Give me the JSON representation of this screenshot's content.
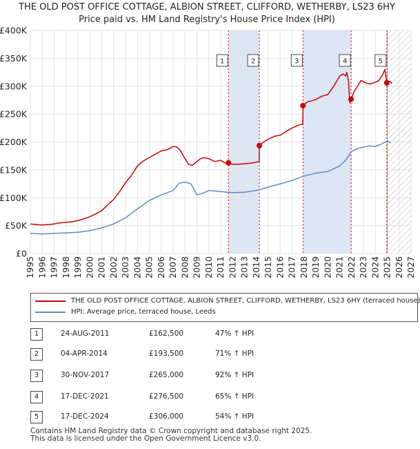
{
  "title_line1": "THE OLD POST OFFICE COTTAGE, ALBION STREET, CLIFFORD, WETHERBY, LS23 6HY",
  "title_line2": "Price paid vs. HM Land Registry's House Price Index (HPI)",
  "chart_data": {
    "type": "line",
    "ylim": [
      0,
      400000
    ],
    "xlim": [
      1995,
      2027
    ],
    "y_ticks": [
      0,
      50000,
      100000,
      150000,
      200000,
      250000,
      300000,
      350000,
      400000
    ],
    "y_tick_labels": [
      "£0",
      "£50K",
      "£100K",
      "£150K",
      "£200K",
      "£250K",
      "£300K",
      "£350K",
      "£400K"
    ],
    "x_ticks": [
      1995,
      1996,
      1997,
      1998,
      1999,
      2000,
      2001,
      2002,
      2003,
      2004,
      2005,
      2006,
      2007,
      2008,
      2009,
      2010,
      2011,
      2012,
      2013,
      2014,
      2015,
      2016,
      2017,
      2018,
      2019,
      2020,
      2021,
      2022,
      2023,
      2024,
      2025,
      2026,
      2027
    ],
    "grid": true,
    "legend_position": "below",
    "colors": {
      "property": "#cc0000",
      "hpi": "#5b8ac6",
      "shade": "#dde6f5",
      "marker_line": "#cc0000"
    },
    "shaded_spans": [
      [
        2011.65,
        2014.25
      ],
      [
        2017.92,
        2021.96
      ]
    ],
    "hatch_from": 2025.0,
    "series": [
      {
        "name": "THE OLD POST OFFICE COTTAGE, ALBION STREET, CLIFFORD, WETHERBY, LS23 6HY (terraced house)",
        "color": "#cc0000",
        "x": [
          1995,
          1995.5,
          1996,
          1996.5,
          1997,
          1997.5,
          1998,
          1998.5,
          1999,
          1999.5,
          2000,
          2000.5,
          2001,
          2001.5,
          2002,
          2002.5,
          2003,
          2003.5,
          2004,
          2004.5,
          2005,
          2005.5,
          2006,
          2006.5,
          2007,
          2007.3,
          2007.6,
          2008,
          2008.3,
          2008.6,
          2009,
          2009.3,
          2009.6,
          2010,
          2010.5,
          2011,
          2011.3,
          2011.65,
          2012,
          2012.5,
          2013,
          2013.5,
          2014,
          2014.24,
          2014.25,
          2014.6,
          2015,
          2015.5,
          2016,
          2016.5,
          2017,
          2017.5,
          2017.9,
          2017.92,
          2018.3,
          2018.7,
          2019,
          2019.5,
          2020,
          2020.5,
          2021,
          2021.3,
          2021.5,
          2021.6,
          2021.75,
          2021.85,
          2021.96,
          2022.2,
          2022.5,
          2022.8,
          2023,
          2023.3,
          2023.6,
          2024,
          2024.3,
          2024.6,
          2024.8,
          2024.96,
          2025.2,
          2025.4
        ],
        "y": [
          53000,
          52000,
          51000,
          52000,
          53000,
          55000,
          56000,
          57000,
          59000,
          62000,
          66000,
          71000,
          77000,
          87000,
          97000,
          111000,
          127000,
          140000,
          157000,
          166000,
          172000,
          178000,
          184000,
          186000,
          192000,
          191000,
          185000,
          170000,
          160000,
          158000,
          165000,
          170000,
          172000,
          170000,
          165000,
          167000,
          163000,
          162500,
          160000,
          160000,
          161000,
          162000,
          164000,
          165000,
          193500,
          200000,
          205000,
          210000,
          212000,
          219000,
          225000,
          230000,
          232000,
          265000,
          272000,
          274000,
          276000,
          282000,
          285000,
          300000,
          318000,
          322000,
          318000,
          325000,
          308000,
          270000,
          276500,
          290000,
          300000,
          310000,
          308000,
          305000,
          304000,
          307000,
          310000,
          320000,
          330000,
          306000,
          309000,
          305000
        ]
      },
      {
        "name": "HPI: Average price, terraced house, Leeds",
        "color": "#5b8ac6",
        "x": [
          1995,
          1996,
          1997,
          1998,
          1999,
          2000,
          2001,
          2002,
          2003,
          2004,
          2005,
          2006,
          2007,
          2007.5,
          2008,
          2008.5,
          2009,
          2009.5,
          2010,
          2011,
          2012,
          2013,
          2014,
          2015,
          2016,
          2017,
          2018,
          2019,
          2020,
          2021,
          2021.5,
          2022,
          2022.5,
          2023,
          2023.5,
          2024,
          2024.5,
          2025,
          2025.3
        ],
        "y": [
          36000,
          35000,
          36000,
          37000,
          38000,
          41000,
          46000,
          53000,
          64000,
          80000,
          95000,
          105000,
          113000,
          126000,
          128000,
          125000,
          105000,
          108000,
          113000,
          111000,
          109000,
          110000,
          113000,
          119000,
          125000,
          131000,
          139000,
          144000,
          147000,
          157000,
          167000,
          183000,
          188000,
          191000,
          193000,
          192000,
          196000,
          202000,
          198000
        ]
      }
    ],
    "markers": [
      {
        "label": "1",
        "x": 2011.65,
        "y": 162500
      },
      {
        "label": "2",
        "x": 2014.25,
        "y": 193500
      },
      {
        "label": "3",
        "x": 2017.92,
        "y": 265000
      },
      {
        "label": "4",
        "x": 2021.96,
        "y": 276500
      },
      {
        "label": "5",
        "x": 2024.96,
        "y": 306000
      }
    ]
  },
  "legend": {
    "property_label": "THE OLD POST OFFICE COTTAGE, ALBION STREET, CLIFFORD, WETHERBY, LS23 6HY (terraced house)",
    "hpi_label": "HPI: Average price, terraced house, Leeds"
  },
  "transactions": [
    {
      "num": "1",
      "date": "24-AUG-2011",
      "price": "£162,500",
      "hpi": "47% ↑ HPI"
    },
    {
      "num": "2",
      "date": "04-APR-2014",
      "price": "£193,500",
      "hpi": "71% ↑ HPI"
    },
    {
      "num": "3",
      "date": "30-NOV-2017",
      "price": "£265,000",
      "hpi": "92% ↑ HPI"
    },
    {
      "num": "4",
      "date": "17-DEC-2021",
      "price": "£276,500",
      "hpi": "65% ↑ HPI"
    },
    {
      "num": "5",
      "date": "17-DEC-2024",
      "price": "£306,000",
      "hpi": "54% ↑ HPI"
    }
  ],
  "footer": {
    "line1": "Contains HM Land Registry data © Crown copyright and database right 2025.",
    "line2": "This data is licensed under the Open Government Licence v3.0."
  }
}
